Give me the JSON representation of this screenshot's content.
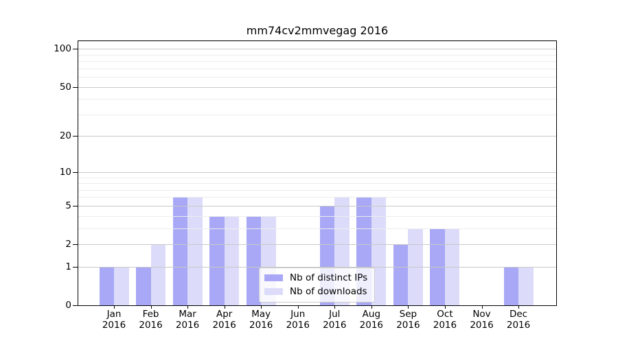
{
  "chart_data": {
    "type": "bar",
    "title": "mm74cv2mmvegag 2016",
    "categories": [
      "Jan",
      "Feb",
      "Mar",
      "Apr",
      "May",
      "Jun",
      "Jul",
      "Aug",
      "Sep",
      "Oct",
      "Nov",
      "Dec"
    ],
    "year_label": "2016",
    "series": [
      {
        "name": "Nb of distinct IPs",
        "color": "#a8a8f6",
        "values": [
          1,
          1,
          6,
          4,
          4,
          0,
          5,
          6,
          2,
          3,
          0,
          1
        ]
      },
      {
        "name": "Nb of downloads",
        "color": "#dcdcfa",
        "values": [
          1,
          2,
          6,
          4,
          4,
          0,
          6,
          6,
          3,
          3,
          0,
          1
        ]
      }
    ],
    "yscale": "log1p",
    "ylim": [
      0,
      115
    ],
    "yticks": [
      0,
      1,
      2,
      5,
      10,
      20,
      50,
      100
    ],
    "yminor_gridlines": [
      3,
      4,
      6,
      7,
      8,
      9,
      30,
      40,
      60,
      70,
      80,
      90
    ],
    "xlabel": "",
    "ylabel": "",
    "grid": true,
    "legend_position": "lower center",
    "colors": {
      "grid_major": "#c8c8c8",
      "grid_minor": "#ececec",
      "spine": "#000000",
      "text": "#000000",
      "background": "#ffffff"
    }
  }
}
